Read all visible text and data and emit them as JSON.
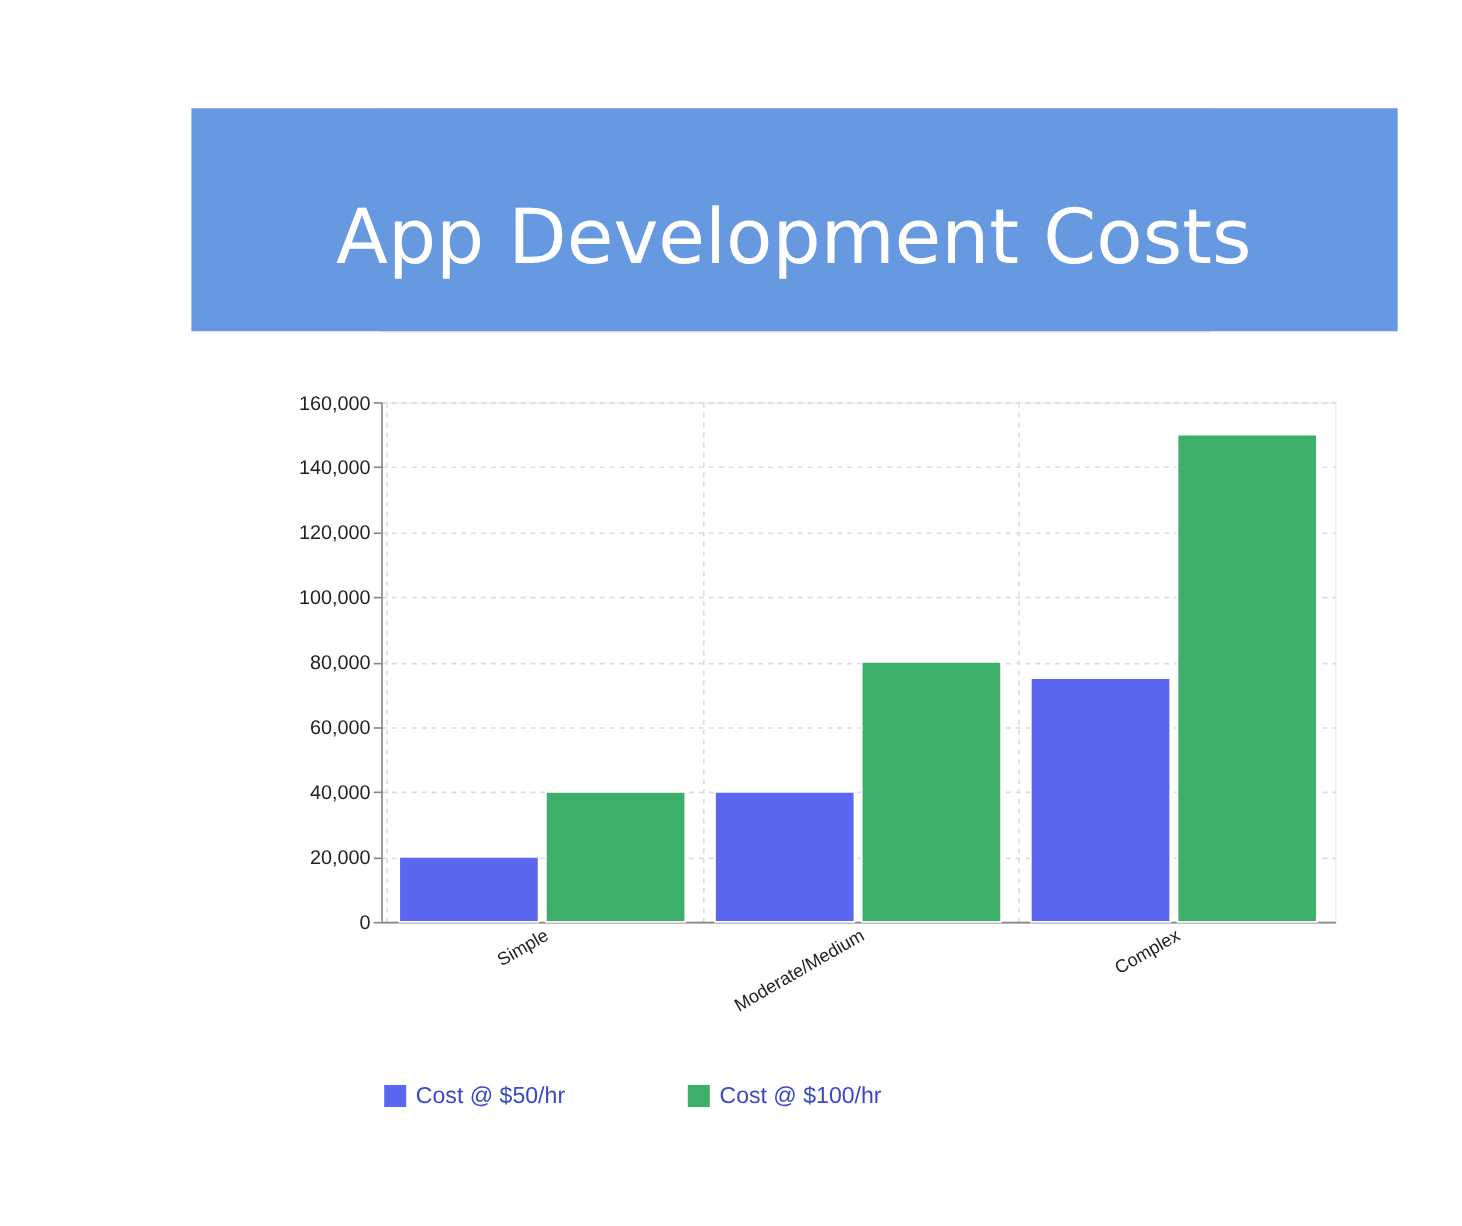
{
  "chart_data": {
    "type": "bar",
    "title": "App Development Costs",
    "categories": [
      "Simple",
      "Moderate/Medium",
      "Complex"
    ],
    "series": [
      {
        "name": "Cost @ $50/hr",
        "color": "#5b67f0",
        "values": [
          20000,
          40000,
          75000
        ]
      },
      {
        "name": "Cost @ $100/hr",
        "color": "#3daf6b",
        "values": [
          40000,
          80000,
          150000
        ]
      }
    ],
    "ylim": [
      0,
      160000
    ],
    "yticks": [
      {
        "value": 0,
        "label": "0"
      },
      {
        "value": 20000,
        "label": "20,000"
      },
      {
        "value": 40000,
        "label": "40,000"
      },
      {
        "value": 60000,
        "label": "60,000"
      },
      {
        "value": 80000,
        "label": "80,000"
      },
      {
        "value": 100000,
        "label": "100,000"
      },
      {
        "value": 120000,
        "label": "120,000"
      },
      {
        "value": 140000,
        "label": "140,000"
      },
      {
        "value": 160000,
        "label": "160,000"
      }
    ],
    "grid": true,
    "legend": "bottom"
  }
}
